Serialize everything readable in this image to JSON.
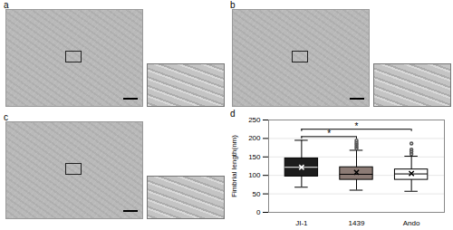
{
  "figure": {
    "panel_labels": [
      "a",
      "b",
      "c",
      "d"
    ]
  },
  "chart_data": {
    "type": "box",
    "categories": [
      "JI-1",
      "1439",
      "Ando"
    ],
    "colors": [
      "#1c1c1c",
      "#8c7b75",
      "#ffffff"
    ],
    "stats": [
      {
        "min": 68,
        "q1": 97,
        "median": 122,
        "q3": 146,
        "max": 195,
        "mean": 122,
        "outliers": []
      },
      {
        "min": 60,
        "q1": 88,
        "median": 103,
        "q3": 122,
        "max": 168,
        "mean": 108,
        "outliers": [
          173,
          178,
          183,
          188,
          194
        ]
      },
      {
        "min": 57,
        "q1": 88,
        "median": 104,
        "q3": 116,
        "max": 152,
        "mean": 105,
        "outliers": [
          158,
          164,
          170,
          186
        ]
      }
    ],
    "y_label": "Fimbrial length(nm)",
    "ylim": [
      0,
      250
    ],
    "yticks": [
      0,
      50,
      100,
      150,
      200,
      250
    ],
    "annotations": [
      {
        "from": "JI-1",
        "to": "1439",
        "y": 205,
        "label": "*"
      },
      {
        "from": "JI-1",
        "to": "Ando",
        "y": 225,
        "label": "*"
      }
    ]
  }
}
